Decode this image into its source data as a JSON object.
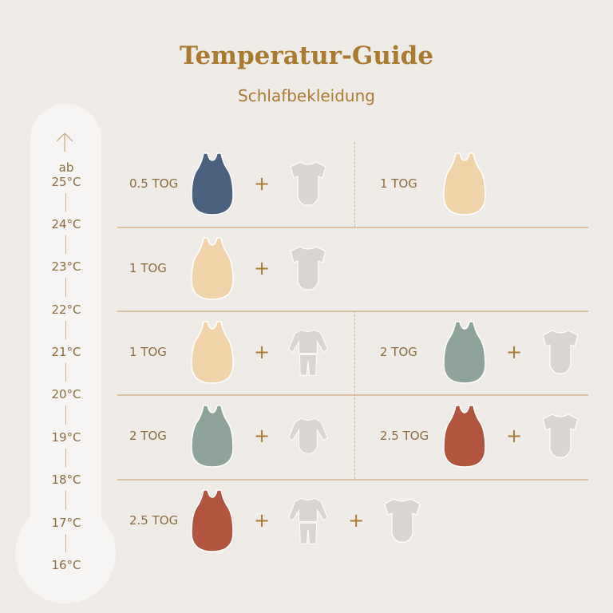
{
  "title": "Temperatur-Guide",
  "subtitle": "Schlafbekleidung",
  "colors": {
    "title": "#a97a30",
    "text": "#8c6d3f",
    "navy": "#4a6180",
    "peach": "#f1d3a9",
    "sage": "#8ea49b",
    "rust": "#b2553f",
    "garment": "#d9d6d1"
  },
  "thermometer": {
    "top_prefix": "ab",
    "labels": [
      "25°C",
      "24°C",
      "23°C",
      "22°C",
      "21°C",
      "20°C",
      "19°C",
      "18°C",
      "17°C",
      "16°C"
    ]
  },
  "rows": [
    {
      "cells": [
        {
          "label": "0.5 TOG",
          "items": [
            "sack:navy",
            "bodysuit-short"
          ]
        },
        {
          "label": "1 TOG",
          "items": [
            "sack:peach"
          ]
        }
      ]
    },
    {
      "cells": [
        {
          "label": "1 TOG",
          "items": [
            "sack:peach",
            "bodysuit-short"
          ]
        }
      ]
    },
    {
      "cells": [
        {
          "label": "1 TOG",
          "items": [
            "sack:peach",
            "pajamas"
          ]
        },
        {
          "label": "2 TOG",
          "items": [
            "sack:sage",
            "bodysuit-short"
          ]
        }
      ]
    },
    {
      "cells": [
        {
          "label": "2 TOG",
          "items": [
            "sack:sage",
            "bodysuit-long"
          ]
        },
        {
          "label": "2.5 TOG",
          "items": [
            "sack:rust",
            "bodysuit-short"
          ]
        }
      ]
    },
    {
      "cells": [
        {
          "label": "2.5 TOG",
          "items": [
            "sack:rust",
            "pajamas",
            "bodysuit-short"
          ]
        }
      ]
    }
  ],
  "plus": "+"
}
